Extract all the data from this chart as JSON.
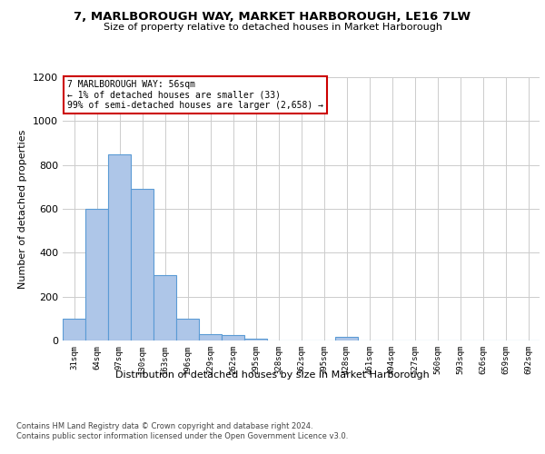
{
  "title": "7, MARLBOROUGH WAY, MARKET HARBOROUGH, LE16 7LW",
  "subtitle": "Size of property relative to detached houses in Market Harborough",
  "xlabel": "Distribution of detached houses by size in Market Harborough",
  "ylabel": "Number of detached properties",
  "bin_labels": [
    "31sqm",
    "64sqm",
    "97sqm",
    "130sqm",
    "163sqm",
    "196sqm",
    "229sqm",
    "262sqm",
    "295sqm",
    "328sqm",
    "362sqm",
    "395sqm",
    "428sqm",
    "461sqm",
    "494sqm",
    "527sqm",
    "560sqm",
    "593sqm",
    "626sqm",
    "659sqm",
    "692sqm"
  ],
  "bar_values": [
    100,
    600,
    850,
    690,
    300,
    100,
    30,
    25,
    10,
    0,
    0,
    0,
    15,
    0,
    0,
    0,
    0,
    0,
    0,
    0,
    0
  ],
  "bar_color": "#aec6e8",
  "bar_edge_color": "#5b9bd5",
  "annotation_text": "7 MARLBOROUGH WAY: 56sqm\n← 1% of detached houses are smaller (33)\n99% of semi-detached houses are larger (2,658) →",
  "annotation_box_color": "#ffffff",
  "annotation_edge_color": "#cc0000",
  "ylim": [
    0,
    1200
  ],
  "yticks": [
    0,
    200,
    400,
    600,
    800,
    1000,
    1200
  ],
  "background_color": "#ffffff",
  "grid_color": "#cccccc",
  "footer_line1": "Contains HM Land Registry data © Crown copyright and database right 2024.",
  "footer_line2": "Contains public sector information licensed under the Open Government Licence v3.0."
}
